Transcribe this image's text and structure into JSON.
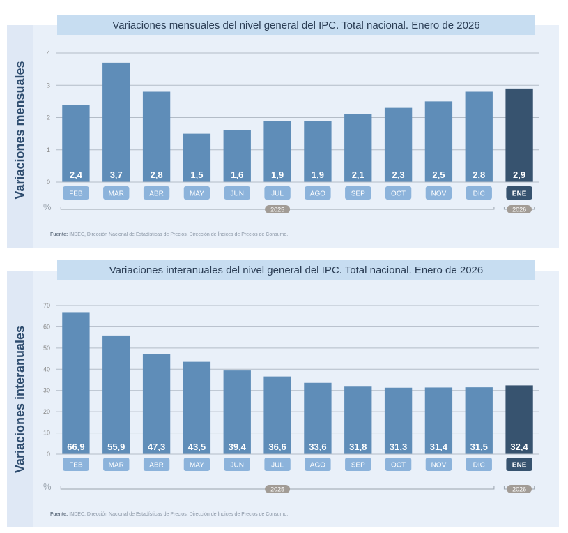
{
  "colors": {
    "bar": "#5f8db8",
    "bar_last": "#37536f",
    "month_pill": "#8cb3db",
    "month_pill_last": "#37536f",
    "year_pill": "#a29c96",
    "grid": "#b3bcc7",
    "axis_text": "#8a8a8a"
  },
  "source": {
    "label": "Fuente:",
    "text": "INDEC, Dirección Nacional de Estadísticas de Precios. Dirección de Índices de Precios de Consumo."
  },
  "unit_symbol": "%",
  "chart_data": [
    {
      "type": "bar",
      "title": "Variaciones mensuales del nivel general del IPC. Total nacional. Enero de 2026",
      "ylabel": "Variaciones mensuales",
      "categories": [
        "FEB",
        "MAR",
        "ABR",
        "MAY",
        "JUN",
        "JUL",
        "AGO",
        "SEP",
        "OCT",
        "NOV",
        "DIC",
        "ENE"
      ],
      "values": [
        2.4,
        3.7,
        2.8,
        1.5,
        1.6,
        1.9,
        1.9,
        2.1,
        2.3,
        2.5,
        2.8,
        2.9
      ],
      "value_labels": [
        "2,4",
        "3,7",
        "2,8",
        "1,5",
        "1,6",
        "1,9",
        "1,9",
        "2,1",
        "2,3",
        "2,5",
        "2,8",
        "2,9"
      ],
      "ylim": [
        0,
        4
      ],
      "yticks": [
        0,
        1,
        2,
        3,
        4
      ],
      "groups": [
        {
          "label": "2025",
          "from": 0,
          "to": 10
        },
        {
          "label": "2026",
          "from": 11,
          "to": 11
        }
      ],
      "highlight_index": 11
    },
    {
      "type": "bar",
      "title": "Variaciones interanuales del nivel general del IPC. Total nacional. Enero de 2026",
      "ylabel": "Variaciones interanuales",
      "categories": [
        "FEB",
        "MAR",
        "ABR",
        "MAY",
        "JUN",
        "JUL",
        "AGO",
        "SEP",
        "OCT",
        "NOV",
        "DIC",
        "ENE"
      ],
      "values": [
        66.9,
        55.9,
        47.3,
        43.5,
        39.4,
        36.6,
        33.6,
        31.8,
        31.3,
        31.4,
        31.5,
        32.4
      ],
      "value_labels": [
        "66,9",
        "55,9",
        "47,3",
        "43,5",
        "39,4",
        "36,6",
        "33,6",
        "31,8",
        "31,3",
        "31,4",
        "31,5",
        "32,4"
      ],
      "ylim": [
        0,
        70
      ],
      "yticks": [
        0,
        10,
        20,
        30,
        40,
        50,
        60,
        70
      ],
      "groups": [
        {
          "label": "2025",
          "from": 0,
          "to": 10
        },
        {
          "label": "2026",
          "from": 11,
          "to": 11
        }
      ],
      "highlight_index": 11
    }
  ]
}
